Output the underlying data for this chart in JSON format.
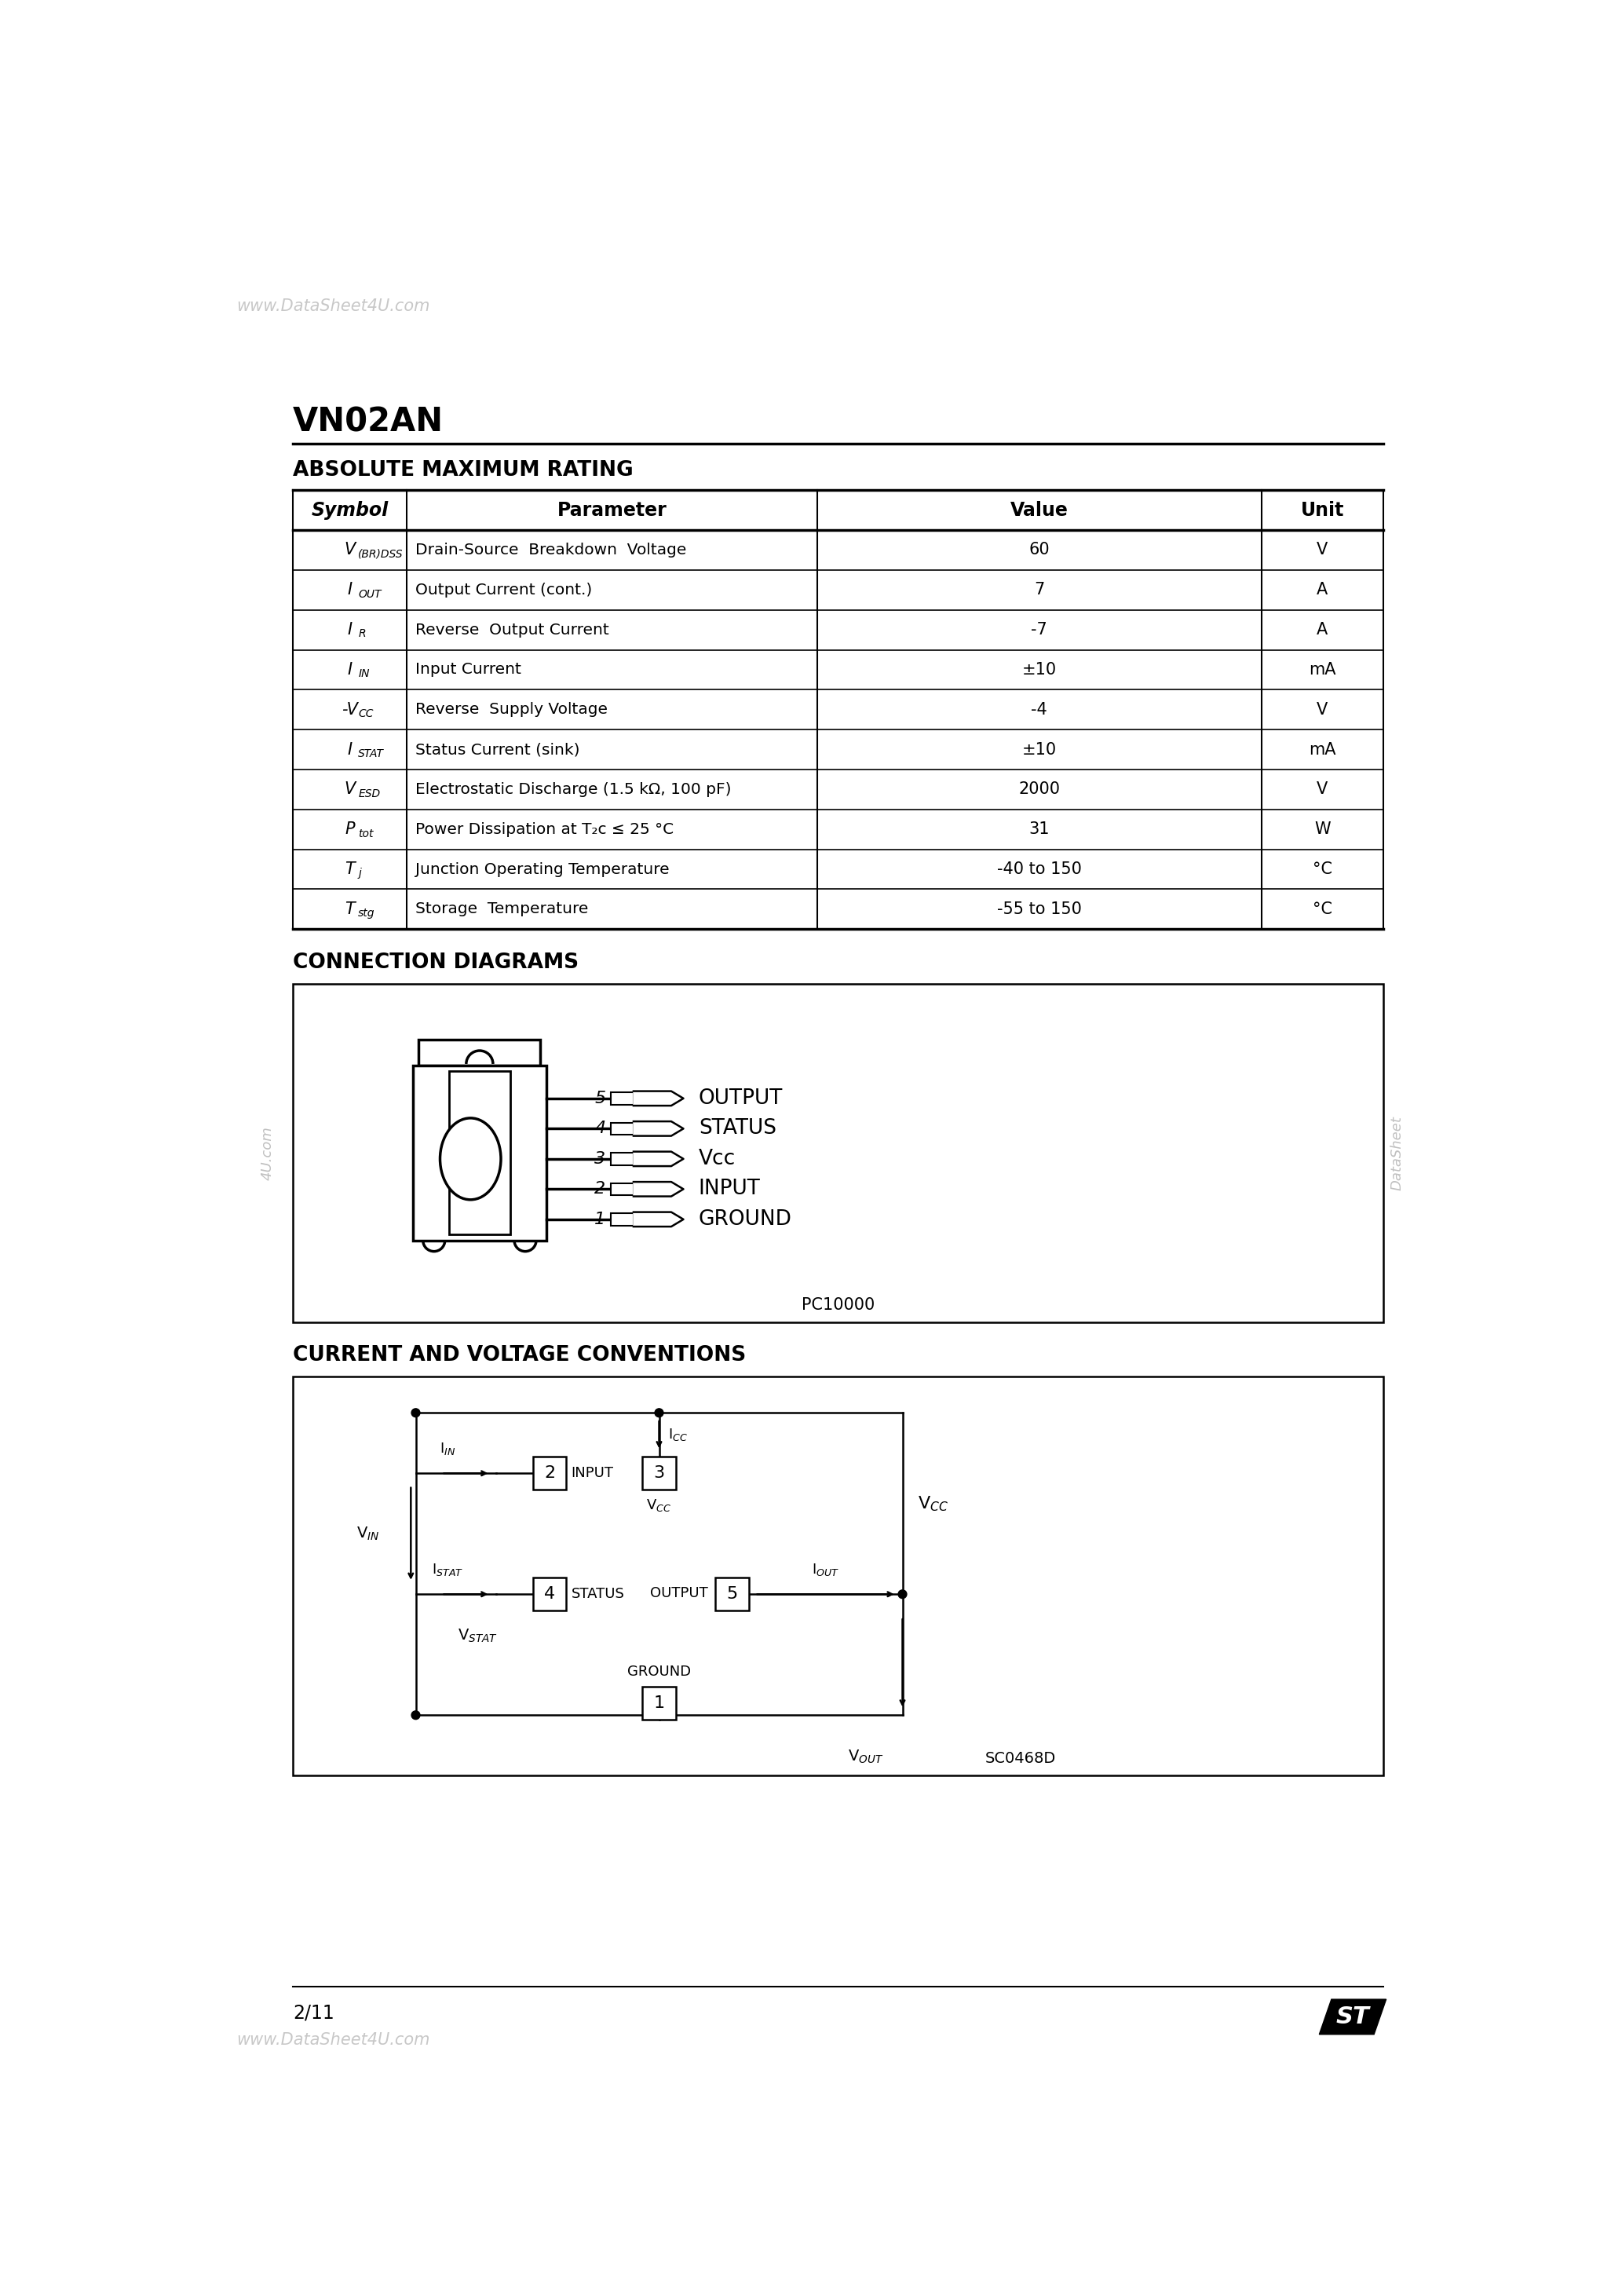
{
  "watermark_top": "www.DataSheet4U.com",
  "watermark_bottom": "DataSheet4U.com",
  "watermark_side_left": "4U.com",
  "watermark_side_right": "DataShe",
  "title": "VN02AN",
  "section1_title": "ABSOLUTE MAXIMUM RATING",
  "table_headers": [
    "Symbol",
    "Parameter",
    "Value",
    "Unit"
  ],
  "symbols_main": [
    "V",
    "I",
    "I",
    "I",
    "-V",
    "I",
    "V",
    "P",
    "T",
    "T"
  ],
  "symbols_sub": [
    "(BR)DSS",
    "OUT",
    "R",
    "IN",
    "CC",
    "STAT",
    "ESD",
    "tot",
    "j",
    "stg"
  ],
  "symbols_prefix": [
    "",
    "",
    "",
    "",
    "",
    "",
    "",
    "",
    "",
    ""
  ],
  "parameters": [
    "Drain-Source  Breakdown  Voltage",
    "Output Current (cont.)",
    "Reverse  Output Current",
    "Input Current",
    "Reverse  Supply Voltage",
    "Status Current (sink)",
    "Electrostatic Discharge (1.5 kΩ, 100 pF)",
    "Power Dissipation at T₂c ≤ 25 °C",
    "Junction Operating Temperature",
    "Storage  Temperature"
  ],
  "values": [
    "60",
    "7",
    "-7",
    "±10",
    "-4",
    "±10",
    "2000",
    "31",
    "-40 to 150",
    "-55 to 150"
  ],
  "units": [
    "V",
    "A",
    "A",
    "mA",
    "V",
    "mA",
    "V",
    "W",
    "°C",
    "°C"
  ],
  "section2_title": "CONNECTION DIAGRAMS",
  "pin_names_conn": [
    "OUTPUT",
    "STATUS",
    "Vcc",
    "INPUT",
    "GROUND"
  ],
  "pin_numbers_conn": [
    "5",
    "4",
    "3",
    "2",
    "1"
  ],
  "pc_label": "PC10000",
  "section3_title": "CURRENT AND VOLTAGE CONVENTIONS",
  "sc_label": "SC0468D",
  "page_number": "2/11",
  "bg_color": "#ffffff",
  "text_color": "#000000"
}
